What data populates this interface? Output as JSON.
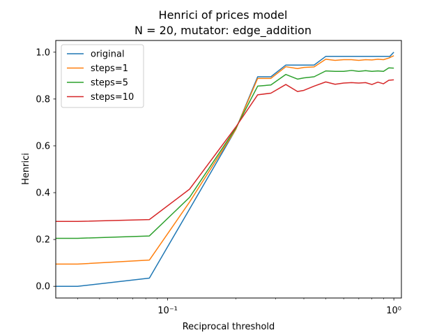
{
  "chart_data": {
    "type": "line",
    "title": "Henrici of prices model",
    "subtitle": "N = 20, mutator: edge_addition",
    "xlabel": "Reciprocal threshold",
    "ylabel": "Henrici",
    "xscale": "log",
    "xlim": [
      0.032,
      1.08
    ],
    "ylim": [
      -0.05,
      1.05
    ],
    "grid": false,
    "legend_position": "top-left",
    "x_ticks": [
      {
        "value": 0.1,
        "label": "10⁻¹"
      },
      {
        "value": 1,
        "label": "10⁰"
      }
    ],
    "y_ticks": [
      {
        "value": 0.0,
        "label": "0.0"
      },
      {
        "value": 0.2,
        "label": "0.2"
      },
      {
        "value": 0.4,
        "label": "0.4"
      },
      {
        "value": 0.6,
        "label": "0.6"
      },
      {
        "value": 0.8,
        "label": "0.8"
      },
      {
        "value": 1.0,
        "label": "1.0"
      }
    ],
    "series": [
      {
        "name": "original",
        "color": "#1f77b4",
        "x": [
          0.032,
          0.04,
          0.083,
          0.125,
          0.2,
          0.25,
          0.286,
          0.333,
          0.4,
          0.444,
          0.5,
          0.6,
          0.7,
          0.8,
          0.9,
          0.96,
          1.0
        ],
        "y": [
          0.0,
          0.0,
          0.035,
          0.33,
          0.67,
          0.895,
          0.895,
          0.945,
          0.945,
          0.945,
          0.982,
          0.982,
          0.982,
          0.982,
          0.982,
          0.982,
          1.0
        ]
      },
      {
        "name": "steps=1",
        "color": "#ff7f0e",
        "x": [
          0.032,
          0.04,
          0.083,
          0.125,
          0.2,
          0.25,
          0.286,
          0.333,
          0.375,
          0.4,
          0.444,
          0.5,
          0.55,
          0.6,
          0.65,
          0.7,
          0.75,
          0.8,
          0.85,
          0.9,
          0.95,
          1.0
        ],
        "y": [
          0.095,
          0.095,
          0.112,
          0.36,
          0.67,
          0.888,
          0.888,
          0.938,
          0.93,
          0.935,
          0.937,
          0.97,
          0.965,
          0.968,
          0.968,
          0.965,
          0.968,
          0.967,
          0.97,
          0.968,
          0.975,
          0.985
        ]
      },
      {
        "name": "steps=5",
        "color": "#2ca02c",
        "x": [
          0.032,
          0.04,
          0.083,
          0.125,
          0.2,
          0.25,
          0.286,
          0.333,
          0.375,
          0.4,
          0.444,
          0.5,
          0.55,
          0.6,
          0.65,
          0.7,
          0.75,
          0.8,
          0.85,
          0.9,
          0.95,
          1.0
        ],
        "y": [
          0.205,
          0.205,
          0.215,
          0.38,
          0.675,
          0.855,
          0.86,
          0.905,
          0.885,
          0.89,
          0.895,
          0.92,
          0.918,
          0.918,
          0.922,
          0.918,
          0.921,
          0.918,
          0.92,
          0.918,
          0.933,
          0.932
        ]
      },
      {
        "name": "steps=10",
        "color": "#d62728",
        "x": [
          0.032,
          0.04,
          0.083,
          0.125,
          0.2,
          0.25,
          0.286,
          0.333,
          0.375,
          0.4,
          0.444,
          0.5,
          0.55,
          0.6,
          0.65,
          0.7,
          0.75,
          0.8,
          0.85,
          0.9,
          0.95,
          1.0
        ],
        "y": [
          0.277,
          0.277,
          0.285,
          0.415,
          0.68,
          0.818,
          0.825,
          0.862,
          0.832,
          0.837,
          0.855,
          0.873,
          0.863,
          0.868,
          0.87,
          0.868,
          0.87,
          0.862,
          0.872,
          0.865,
          0.88,
          0.882
        ]
      }
    ]
  }
}
